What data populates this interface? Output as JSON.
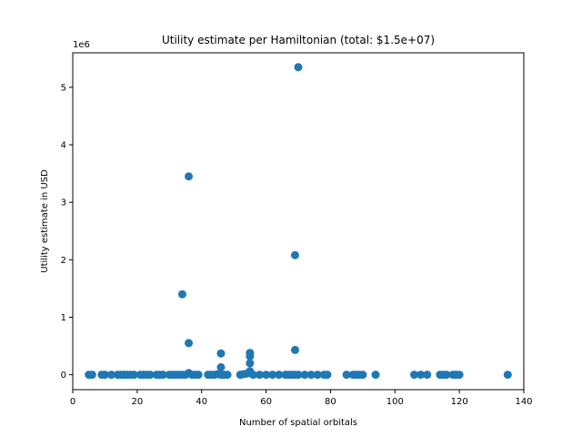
{
  "chart_data": {
    "type": "scatter",
    "title": "Utility estimate per Hamiltonian (total: $1.5e+07)",
    "xlabel": "Number of spatial orbitals",
    "ylabel": "Utility estimate in USD",
    "y_offset_label": "1e6",
    "xlim": [
      0,
      140
    ],
    "ylim": [
      -260000,
      5600000
    ],
    "x_ticks": [
      0,
      20,
      40,
      60,
      80,
      100,
      120,
      140
    ],
    "x_tick_labels": [
      "0",
      "20",
      "40",
      "60",
      "80",
      "100",
      "120",
      "140"
    ],
    "y_ticks": [
      0,
      1000000,
      2000000,
      3000000,
      4000000,
      5000000
    ],
    "y_tick_labels": [
      "0",
      "1",
      "2",
      "3",
      "4",
      "5"
    ],
    "grid": false,
    "marker_color": "#1f77b4",
    "series": [
      {
        "x": [
          5,
          6,
          9,
          10,
          12,
          14,
          15,
          16,
          17,
          18,
          19,
          21,
          22,
          23,
          24,
          26,
          27,
          28,
          30,
          31,
          32,
          33,
          34,
          35,
          36,
          37,
          38,
          39,
          42,
          43,
          44,
          45,
          46,
          47,
          48,
          52,
          53,
          54,
          55,
          56,
          58,
          60,
          62,
          64,
          66,
          67,
          68,
          69,
          70,
          72,
          74,
          76,
          78,
          79,
          85,
          87,
          88,
          89,
          90,
          94,
          106,
          108,
          110,
          114,
          115,
          116,
          118,
          119,
          120,
          135,
          34,
          36,
          36,
          46,
          46,
          55,
          55,
          55,
          55,
          69,
          69,
          70
        ],
        "y": [
          0,
          0,
          0,
          0,
          0,
          0,
          0,
          0,
          0,
          0,
          0,
          0,
          0,
          0,
          0,
          0,
          0,
          0,
          0,
          0,
          0,
          0,
          0,
          0,
          30000,
          0,
          0,
          0,
          0,
          0,
          0,
          10000,
          0,
          0,
          0,
          0,
          10000,
          20000,
          30000,
          0,
          0,
          0,
          0,
          0,
          0,
          0,
          0,
          0,
          0,
          0,
          0,
          0,
          0,
          0,
          0,
          0,
          0,
          0,
          0,
          0,
          0,
          0,
          0,
          0,
          0,
          0,
          0,
          0,
          0,
          0,
          1400000,
          550000,
          3450000,
          370000,
          130000,
          380000,
          320000,
          200000,
          60000,
          430000,
          2080000,
          5350000
        ]
      }
    ]
  }
}
